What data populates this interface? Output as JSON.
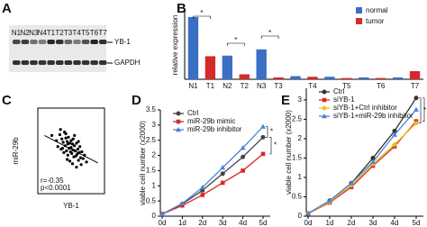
{
  "panel_labels": [
    "A",
    "B",
    "C",
    "D",
    "E"
  ],
  "blot": {
    "lanes": [
      "N1",
      "N2",
      "N3",
      "N4",
      "T1",
      "T2",
      "T3",
      "T4",
      "T5",
      "T6",
      "T7"
    ],
    "bands": [
      "YB-1",
      "GAPDH"
    ]
  },
  "chart_data": [
    {
      "type": "bar",
      "y_label": "relative expression",
      "ylim": [
        0,
        1.1
      ],
      "categories": [
        "N1",
        "T1",
        "N2",
        "T2",
        "N3",
        "T3",
        null,
        "T4",
        null,
        "T5",
        null,
        "T6",
        null,
        "T7"
      ],
      "series": [
        {
          "name": "normal",
          "color": "#3a6fc4",
          "values": [
            1.0,
            null,
            0.38,
            null,
            0.48,
            null,
            0.05,
            null,
            0.04,
            null,
            0.03,
            null,
            0.03,
            null
          ]
        },
        {
          "name": "tumor",
          "color": "#d42a2a",
          "values": [
            null,
            0.37,
            null,
            0.08,
            null,
            0.03,
            null,
            0.04,
            null,
            0.02,
            null,
            0.02,
            null,
            0.13
          ]
        }
      ],
      "annotations": [
        "*",
        "*",
        "*"
      ]
    },
    {
      "type": "scatter",
      "x_label": "YB-1",
      "y_label": "miR-29b",
      "xlim": [
        0,
        10
      ],
      "ylim": [
        0,
        10
      ],
      "color": "#000000",
      "x": [
        2.1,
        2.8,
        3.0,
        3.3,
        3.5,
        3.6,
        3.8,
        3.9,
        4.0,
        4.1,
        4.2,
        4.3,
        4.4,
        4.5,
        4.5,
        4.6,
        4.7,
        4.8,
        4.9,
        5.0,
        5.0,
        5.1,
        5.2,
        5.3,
        5.3,
        5.4,
        5.5,
        5.6,
        5.7,
        5.8,
        5.9,
        6.0,
        6.1,
        6.2,
        6.3,
        6.4,
        6.6,
        6.8,
        7.0,
        7.3,
        3.4,
        4.2,
        4.8,
        5.5,
        6.1,
        5.2,
        4.4,
        3.7,
        6.5,
        5.8
      ],
      "values": [
        6.8,
        6.2,
        5.5,
        6.9,
        5.2,
        6.4,
        6.0,
        4.8,
        7.2,
        5.6,
        6.5,
        5.0,
        6.1,
        5.8,
        4.5,
        6.6,
        5.3,
        5.9,
        4.9,
        6.2,
        5.4,
        4.7,
        5.8,
        6.4,
        5.1,
        4.3,
        5.6,
        5.0,
        4.4,
        5.9,
        4.6,
        5.2,
        3.9,
        4.8,
        5.5,
        4.2,
        4.9,
        4.1,
        4.5,
        3.7,
        7.5,
        7.0,
        3.8,
        6.8,
        6.1,
        3.5,
        4.0,
        5.3,
        3.4,
        3.1
      ],
      "fit_line": {
        "x": [
          1,
          9
        ],
        "y": [
          6.8,
          3.6
        ]
      },
      "annotations": [
        "r=-0.35",
        "p<0.0001"
      ]
    },
    {
      "type": "line",
      "y_label": "viable cell number (x2000)",
      "ylim": [
        0,
        3.5
      ],
      "yticks": [
        0,
        0.5,
        1,
        1.5,
        2,
        2.5,
        3,
        3.5
      ],
      "categories": [
        "0d",
        "1d",
        "2d",
        "3d",
        "4d",
        "5d"
      ],
      "series": [
        {
          "name": "Ctrl",
          "color": "#444444",
          "marker": "circle",
          "values": [
            0.07,
            0.4,
            0.85,
            1.4,
            1.95,
            2.6
          ]
        },
        {
          "name": "miR-29b mimic",
          "color": "#d42a2a",
          "marker": "square",
          "values": [
            0.07,
            0.35,
            0.7,
            1.1,
            1.5,
            2.05
          ]
        },
        {
          "name": "miR-29b inhibitor",
          "color": "#4a86d4",
          "marker": "triangle",
          "values": [
            0.07,
            0.42,
            0.95,
            1.6,
            2.25,
            2.95
          ]
        }
      ],
      "annotations": [
        "*",
        "*"
      ]
    },
    {
      "type": "line",
      "y_label": "viable cell number (x2000)",
      "ylim": [
        0,
        3.3
      ],
      "yticks": [
        0,
        0.5,
        1,
        1.5,
        2,
        2.5,
        3
      ],
      "categories": [
        "0d",
        "1d",
        "2d",
        "3d",
        "4d",
        "5d"
      ],
      "series": [
        {
          "name": "Ctrl",
          "color": "#333333",
          "marker": "circle",
          "values": [
            0.07,
            0.4,
            0.85,
            1.5,
            2.2,
            3.05
          ]
        },
        {
          "name": "siYB-1",
          "color": "#d42a2a",
          "marker": "square",
          "values": [
            0.07,
            0.35,
            0.75,
            1.3,
            1.8,
            2.45
          ]
        },
        {
          "name": "siYB-1+Ctrl inhibitor",
          "color": "#e8c020",
          "marker": "diamond",
          "values": [
            0.07,
            0.37,
            0.8,
            1.35,
            1.85,
            2.4
          ]
        },
        {
          "name": "siYB-1+miR-29b inhibitor",
          "color": "#4a86d4",
          "marker": "triangle",
          "values": [
            0.07,
            0.4,
            0.85,
            1.4,
            2.1,
            2.75
          ]
        }
      ],
      "annotations": [
        "*",
        "*"
      ]
    }
  ]
}
